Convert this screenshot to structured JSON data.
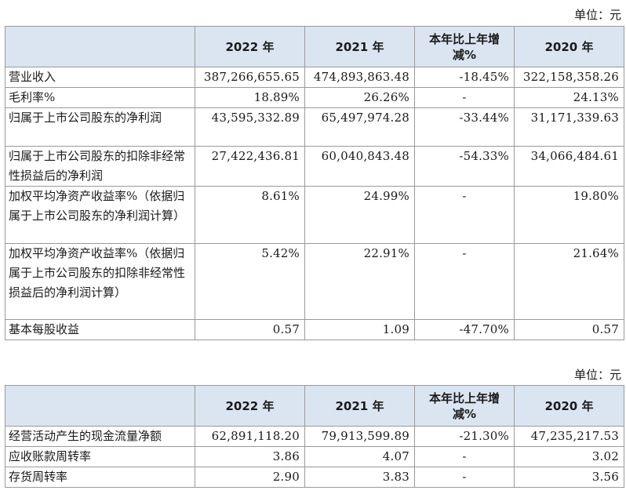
{
  "unit_label": "单位：元",
  "table1": {
    "headers": [
      "",
      "2022 年",
      "2021 年",
      "本年比上年增减%",
      "2020 年"
    ],
    "rows": [
      {
        "label": "营业收入",
        "v2022": "387,266,655.65",
        "v2021": "474,893,863.48",
        "change": "-18.45%",
        "v2020": "322,158,358.26"
      },
      {
        "label": "毛利率%",
        "v2022": "18.89%",
        "v2021": "26.26%",
        "change": "-",
        "v2020": "24.13%"
      },
      {
        "label": "归属于上市公司股东的净利润",
        "v2022": "43,595,332.89",
        "v2021": "65,497,974.28",
        "change": "-33.44%",
        "v2020": "31,171,339.63"
      },
      {
        "label": "归属于上市公司股东的扣除非经常性损益后的净利润",
        "v2022": "27,422,436.81",
        "v2021": "60,040,843.48",
        "change": "-54.33%",
        "v2020": "34,066,484.61"
      },
      {
        "label": "加权平均净资产收益率%（依据归属于上市公司股东的净利润计算）",
        "v2022": "8.61%",
        "v2021": "24.99%",
        "change": "-",
        "v2020": "19.80%"
      },
      {
        "label": "加权平均净资产收益率%（依据归属于上市公司股东的扣除非经常性损益后的净利润计算）",
        "v2022": "5.42%",
        "v2021": "22.91%",
        "change": "-",
        "v2020": "21.64%"
      },
      {
        "label": "基本每股收益",
        "v2022": "0.57",
        "v2021": "1.09",
        "change": "-47.70%",
        "v2020": "0.57"
      }
    ]
  },
  "table2": {
    "headers": [
      "",
      "2022 年",
      "2021 年",
      "本年比上年增减%",
      "2020 年"
    ],
    "rows": [
      {
        "label": "经营活动产生的现金流量净额",
        "v2022": "62,891,118.20",
        "v2021": "79,913,599.89",
        "change": "-21.30%",
        "v2020": "47,235,217.53"
      },
      {
        "label": "应收账款周转率",
        "v2022": "3.86",
        "v2021": "4.07",
        "change": "-",
        "v2020": "3.02"
      },
      {
        "label": "存货周转率",
        "v2022": "2.90",
        "v2021": "3.83",
        "change": "-",
        "v2020": "3.56"
      }
    ]
  }
}
